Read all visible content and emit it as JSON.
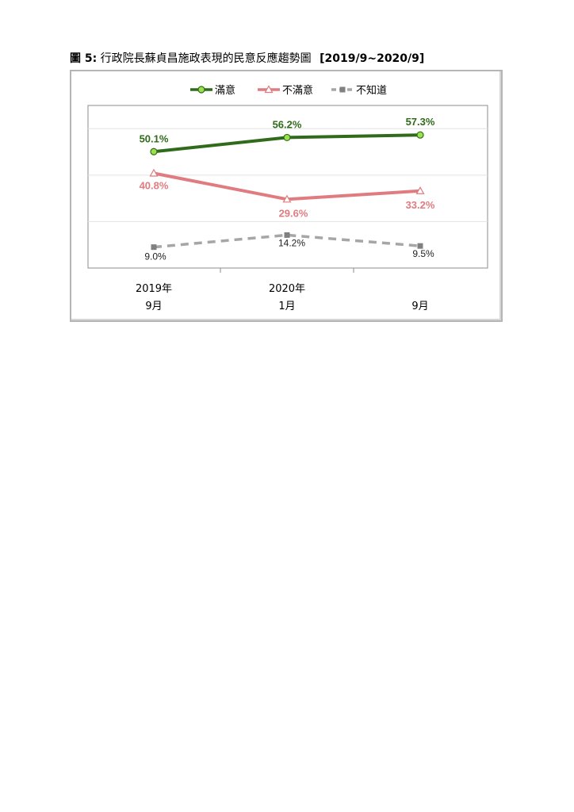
{
  "caption": {
    "lead": "圖 5:",
    "title": "行政院長蘇貞昌施政表現的民意反應趨勢圖",
    "range": "[2019/9~2020/9]"
  },
  "chart_data": {
    "type": "line",
    "categories": [
      {
        "year": "2019年",
        "month": "9月"
      },
      {
        "year": "2020年",
        "month": "1月"
      },
      {
        "year": "",
        "month": "9月"
      }
    ],
    "series": [
      {
        "name": "滿意",
        "values": [
          50.1,
          56.2,
          57.3
        ],
        "labels": [
          "50.1%",
          "56.2%",
          "57.3%"
        ],
        "color": "#2f6b1a",
        "marker_color": "#9be24a",
        "dash": "solid",
        "marker": "circle"
      },
      {
        "name": "不滿意",
        "values": [
          40.8,
          29.6,
          33.2
        ],
        "labels": [
          "40.8%",
          "29.6%",
          "33.2%"
        ],
        "color": "#e07b80",
        "marker_color": "#ffffff",
        "dash": "solid",
        "marker": "triangle"
      },
      {
        "name": "不知道",
        "values": [
          9.0,
          14.2,
          9.5
        ],
        "labels": [
          "9.0%",
          "14.2%",
          "9.5%"
        ],
        "color": "#a6a6a6",
        "marker_color": "#808080",
        "dash": "dashed",
        "marker": "square"
      }
    ],
    "ylim": [
      0,
      70
    ],
    "legend_position": "top",
    "grid": "horizontal"
  }
}
